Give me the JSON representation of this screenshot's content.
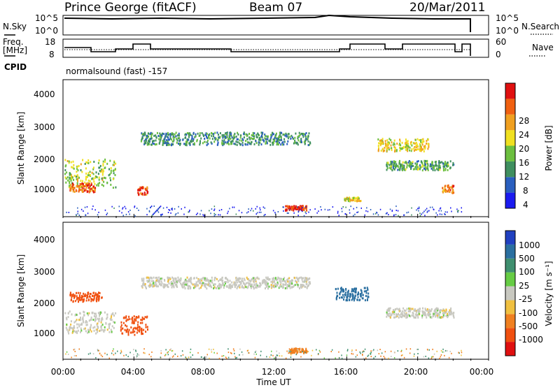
{
  "header": {
    "station": "Prince George (fitACF)",
    "beam": "Beam 07",
    "date": "20/Mar/2011"
  },
  "noise_panel": {
    "left_label": "N.Sky",
    "right_label": "N.Search",
    "left_ticks": [
      "10^5",
      "10^0"
    ],
    "right_ticks": [
      "10^5",
      "10^0"
    ]
  },
  "freq_panel": {
    "left_label_1": "Freq.",
    "left_label_2": "[MHz]",
    "right_label": "Nave",
    "left_ticks": [
      "18",
      "8"
    ],
    "right_ticks": [
      "60",
      "0"
    ]
  },
  "cpid": {
    "label": "CPID",
    "program": "normalsound (fast) -157"
  },
  "x_axis": {
    "title": "Time UT",
    "ticks": [
      "00:00",
      "04:00",
      "08:00",
      "12:00",
      "16:00",
      "20:00",
      "00:00"
    ]
  },
  "power_panel": {
    "ylabel": "Slant Range [km]",
    "yticks": [
      "4000",
      "3000",
      "2000",
      "1000"
    ],
    "colorbar_title": "Power [dB]",
    "colorbar_ticks": [
      "28",
      "24",
      "20",
      "16",
      "12",
      "8",
      "4"
    ],
    "colors": [
      "#1b1bf0",
      "#2a5fbf",
      "#3f8f5f",
      "#6cbf3f",
      "#f0e020",
      "#f0a020",
      "#f06010",
      "#e01010"
    ]
  },
  "velocity_panel": {
    "ylabel": "Slant Range [km]",
    "yticks": [
      "4000",
      "3000",
      "2000",
      "1000"
    ],
    "colorbar_title": "Velocity [m s⁻¹]",
    "colorbar_ticks": [
      "1000",
      "500",
      "100",
      "25",
      "-25",
      "-100",
      "-500",
      "-1000"
    ],
    "colors": [
      "#2040c0",
      "#2a6fa0",
      "#3f8f6f",
      "#66cc44",
      "#c8c8c0",
      "#f0c040",
      "#f08020",
      "#f05010",
      "#e01010"
    ]
  },
  "chart_data": {
    "type": "heatmap",
    "title": "Prince George (fitACF)  Beam 07  20/Mar/2011",
    "xlabel": "Time UT",
    "ylabel": "Slant Range [km]",
    "x_range_hours": [
      0,
      24
    ],
    "y_range_km": [
      200,
      4500
    ],
    "echo_regions_power": [
      {
        "t0": 0.0,
        "t1": 3.0,
        "r_center": 1600,
        "r_width": 900,
        "power_db": 16
      },
      {
        "t0": 0.3,
        "t1": 1.8,
        "r_center": 1150,
        "r_width": 300,
        "power_db": 26
      },
      {
        "t0": 4.3,
        "t1": 4.9,
        "r_center": 1050,
        "r_width": 250,
        "power_db": 28
      },
      {
        "t0": 4.5,
        "t1": 14.5,
        "r_center": 2700,
        "r_width": 400,
        "power_db": 10
      },
      {
        "t0": 13.0,
        "t1": 14.3,
        "r_center": 500,
        "r_width": 150,
        "power_db": 30
      },
      {
        "t0": 16.5,
        "t1": 17.5,
        "r_center": 780,
        "r_width": 120,
        "power_db": 18
      },
      {
        "t0": 18.5,
        "t1": 21.5,
        "r_center": 2500,
        "r_width": 400,
        "power_db": 18
      },
      {
        "t0": 19.0,
        "t1": 23.0,
        "r_center": 1850,
        "r_width": 300,
        "power_db": 12
      },
      {
        "t0": 22.3,
        "t1": 23.0,
        "r_center": 1100,
        "r_width": 250,
        "power_db": 24
      }
    ],
    "echo_regions_velocity": [
      {
        "t0": 0.0,
        "t1": 3.0,
        "r_center": 1400,
        "r_width": 700,
        "velocity": 0
      },
      {
        "t0": 3.3,
        "t1": 4.9,
        "r_center": 1300,
        "r_width": 600,
        "velocity": -500
      },
      {
        "t0": 0.3,
        "t1": 2.2,
        "r_center": 2200,
        "r_width": 300,
        "velocity": -500
      },
      {
        "t0": 4.5,
        "t1": 14.5,
        "r_center": 2650,
        "r_width": 350,
        "velocity": 0
      },
      {
        "t0": 13.3,
        "t1": 14.3,
        "r_center": 500,
        "r_width": 150,
        "velocity": -100
      },
      {
        "t0": 16.0,
        "t1": 18.0,
        "r_center": 2300,
        "r_width": 400,
        "velocity": 500
      },
      {
        "t0": 19.0,
        "t1": 23.0,
        "r_center": 1700,
        "r_width": 300,
        "velocity": 0
      }
    ]
  }
}
